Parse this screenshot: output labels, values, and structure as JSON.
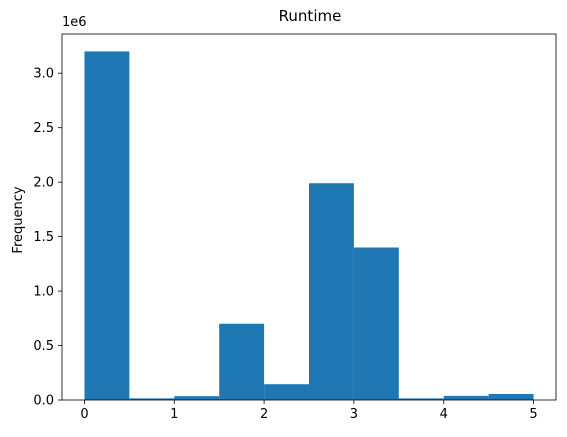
{
  "chart_data": {
    "type": "bar",
    "title": "Runtime",
    "xlabel": "",
    "ylabel": "Frequency",
    "y_offset_label": "1e6",
    "xlim": [
      -0.25,
      5.25
    ],
    "ylim": [
      0,
      3360000
    ],
    "x_ticks": [
      0,
      1,
      2,
      3,
      4,
      5
    ],
    "y_ticks": [
      0.0,
      0.5,
      1.0,
      1.5,
      2.0,
      2.5,
      3.0
    ],
    "y_tick_labels": [
      "0.0",
      "0.5",
      "1.0",
      "1.5",
      "2.0",
      "2.5",
      "3.0"
    ],
    "grid": false,
    "bar_color": "#1f77b4",
    "bins": [
      {
        "start": 0.0,
        "end": 0.5,
        "value": 3200000
      },
      {
        "start": 0.5,
        "end": 1.0,
        "value": 15000
      },
      {
        "start": 1.0,
        "end": 1.5,
        "value": 35000
      },
      {
        "start": 1.5,
        "end": 2.0,
        "value": 700000
      },
      {
        "start": 2.0,
        "end": 2.5,
        "value": 145000
      },
      {
        "start": 2.5,
        "end": 3.0,
        "value": 1990000
      },
      {
        "start": 3.0,
        "end": 3.5,
        "value": 1400000
      },
      {
        "start": 3.5,
        "end": 4.0,
        "value": 15000
      },
      {
        "start": 4.0,
        "end": 4.5,
        "value": 38000
      },
      {
        "start": 4.5,
        "end": 5.0,
        "value": 55000
      }
    ]
  }
}
